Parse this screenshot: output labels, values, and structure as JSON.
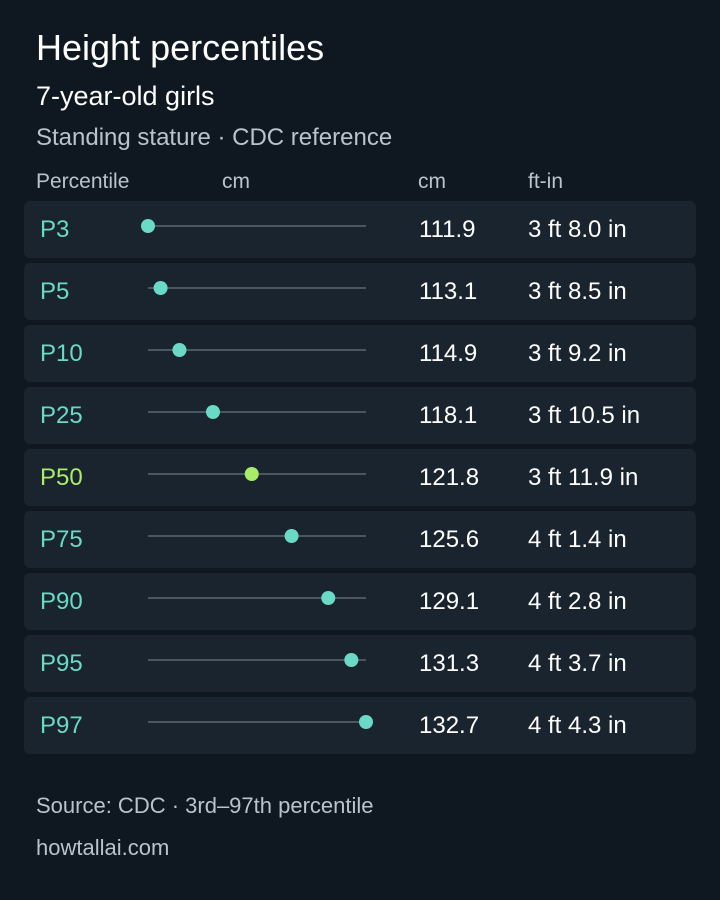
{
  "header": {
    "title": "Height percentiles",
    "subtitle": "7-year-old girls",
    "description": "Standing stature · CDC reference"
  },
  "columns": {
    "percentile": "Percentile",
    "bar": "cm",
    "cm": "cm",
    "ftin": "ft-in"
  },
  "footer": {
    "source": "Source: CDC · 3rd–97th percentile",
    "site": "howtallai.com"
  },
  "colors": {
    "marker": "#6ad9c5",
    "highlight": "#a8ed6a",
    "track": "#4a5661"
  },
  "chart_data": {
    "type": "scatter",
    "categories": [
      "P3",
      "P5",
      "P10",
      "P25",
      "P50",
      "P75",
      "P90",
      "P95",
      "P97"
    ],
    "values": [
      111.9,
      113.1,
      114.9,
      118.1,
      121.8,
      125.6,
      129.1,
      131.3,
      132.7
    ],
    "ftin": [
      "3 ft 8.0 in",
      "3 ft 8.5 in",
      "3 ft 9.2 in",
      "3 ft 10.5 in",
      "3 ft 11.9 in",
      "4 ft 1.4 in",
      "4 ft 2.8 in",
      "4 ft 3.7 in",
      "4 ft 4.3 in"
    ],
    "highlight": "P50",
    "xlim": [
      111.9,
      132.7
    ],
    "xlabel": "cm",
    "grid": false
  }
}
